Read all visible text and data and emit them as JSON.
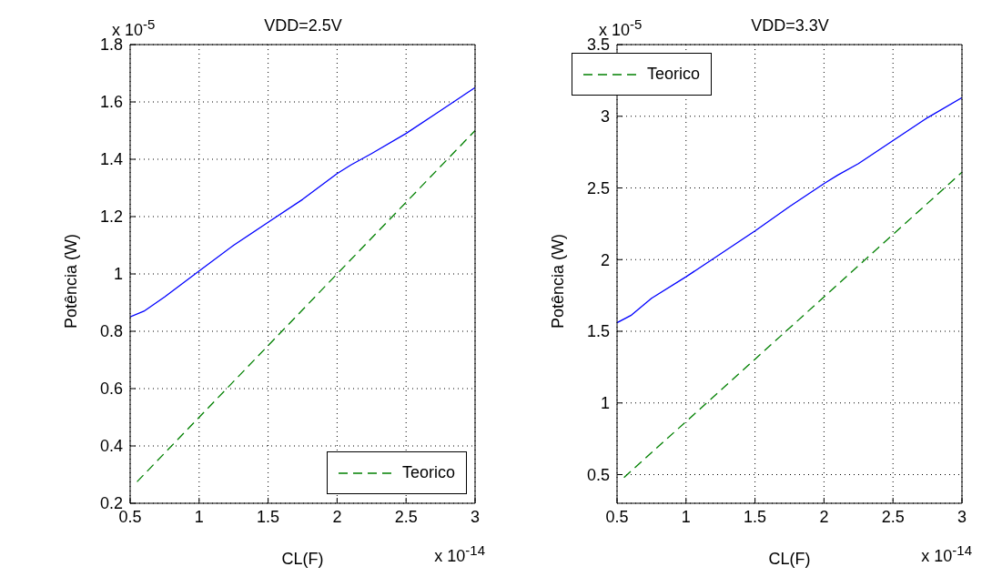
{
  "chart_data": [
    {
      "type": "line",
      "title": "VDD=2.5V",
      "xlabel": "CL(F)",
      "ylabel": "Potência (W)",
      "xlim": [
        0.5,
        3
      ],
      "xticks": [
        0.5,
        1,
        1.5,
        2,
        2.5,
        3
      ],
      "ylim": [
        0.2,
        1.8
      ],
      "yticks": [
        0.2,
        0.4,
        0.6,
        0.8,
        1,
        1.2,
        1.4,
        1.6,
        1.8
      ],
      "grid": true,
      "legend": "bottom right",
      "marker": "none",
      "annotations": [
        "x 10$^{-5}$",
        "x 10$^{-14}$"
      ],
      "series": [
        {
          "color": "#0000ff",
          "line_style": "solid",
          "x": [
            0.5,
            0.6,
            0.75,
            1,
            1.25,
            1.5,
            1.75,
            2,
            2.1,
            2.25,
            2.5,
            2.75,
            3
          ],
          "values": [
            0.85,
            0.87,
            0.92,
            1.01,
            1.1,
            1.18,
            1.26,
            1.35,
            1.38,
            1.42,
            1.49,
            1.57,
            1.65
          ]
        },
        {
          "name": "Teorico",
          "color": "#008000",
          "line_style": "dashed",
          "x": [
            0.55,
            1,
            1.5,
            2,
            2.5,
            3
          ],
          "values": [
            0.275,
            0.5,
            0.75,
            1,
            1.25,
            1.5
          ]
        }
      ]
    },
    {
      "type": "line",
      "title": "VDD=3.3V",
      "xlabel": "CL(F)",
      "ylabel": "Potência (W)",
      "xlim": [
        0.5,
        3
      ],
      "xticks": [
        0.5,
        1,
        1.5,
        2,
        2.5,
        3
      ],
      "ylim": [
        0.3,
        3.5
      ],
      "yticks": [
        0.5,
        1,
        1.5,
        2,
        2.5,
        3,
        3.5
      ],
      "grid": true,
      "legend": "top left",
      "marker": "none",
      "annotations": [
        "x 10$^{-5}$",
        "x 10$^{-14}$"
      ],
      "series": [
        {
          "color": "#0000ff",
          "line_style": "solid",
          "x": [
            0.5,
            0.6,
            0.75,
            1,
            1.25,
            1.5,
            1.75,
            2,
            2.1,
            2.25,
            2.5,
            2.75,
            3
          ],
          "values": [
            1.56,
            1.61,
            1.73,
            1.88,
            2.04,
            2.2,
            2.37,
            2.53,
            2.59,
            2.67,
            2.83,
            2.99,
            3.13
          ]
        },
        {
          "name": "Teorico",
          "color": "#008000",
          "line_style": "dashed",
          "x": [
            0.55,
            1,
            1.5,
            2,
            2.5,
            3
          ],
          "values": [
            0.48,
            0.87,
            1.305,
            1.74,
            2.175,
            2.61
          ]
        }
      ]
    }
  ]
}
